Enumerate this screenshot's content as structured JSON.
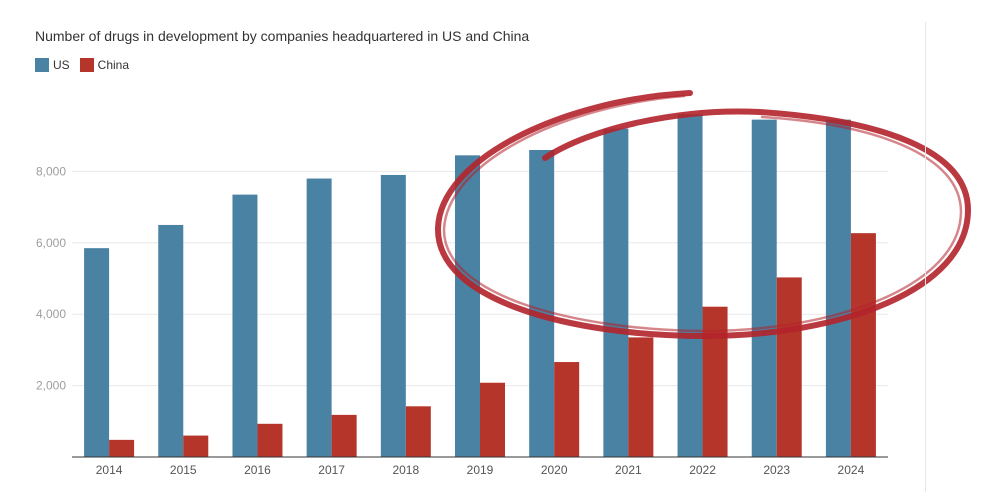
{
  "chart_data": {
    "type": "bar",
    "title": "Number of drugs in development by companies headquartered in US and China",
    "categories": [
      "2014",
      "2015",
      "2016",
      "2017",
      "2018",
      "2019",
      "2020",
      "2021",
      "2022",
      "2023",
      "2024"
    ],
    "series": [
      {
        "name": "US",
        "color": "#4a82a3",
        "values": [
          5850,
          6500,
          7350,
          7800,
          7900,
          8450,
          8600,
          9200,
          9600,
          9450,
          9450
        ]
      },
      {
        "name": "China",
        "color": "#b5352b",
        "values": [
          480,
          600,
          930,
          1180,
          1420,
          2080,
          2660,
          3350,
          4210,
          5030,
          6270
        ]
      }
    ],
    "yticks": [
      "2,000",
      "4,000",
      "6,000",
      "8,000"
    ],
    "ytick_values": [
      2000,
      4000,
      6000,
      8000
    ],
    "ylim": [
      0,
      10000
    ],
    "xlabel": "",
    "ylabel": "",
    "annotation": "red hand-drawn ellipse circling 2019-2024",
    "colors": {
      "axis_text": "#9e9e9e",
      "gridline": "#e8e8e8",
      "ellipse": "#b3232b"
    }
  }
}
